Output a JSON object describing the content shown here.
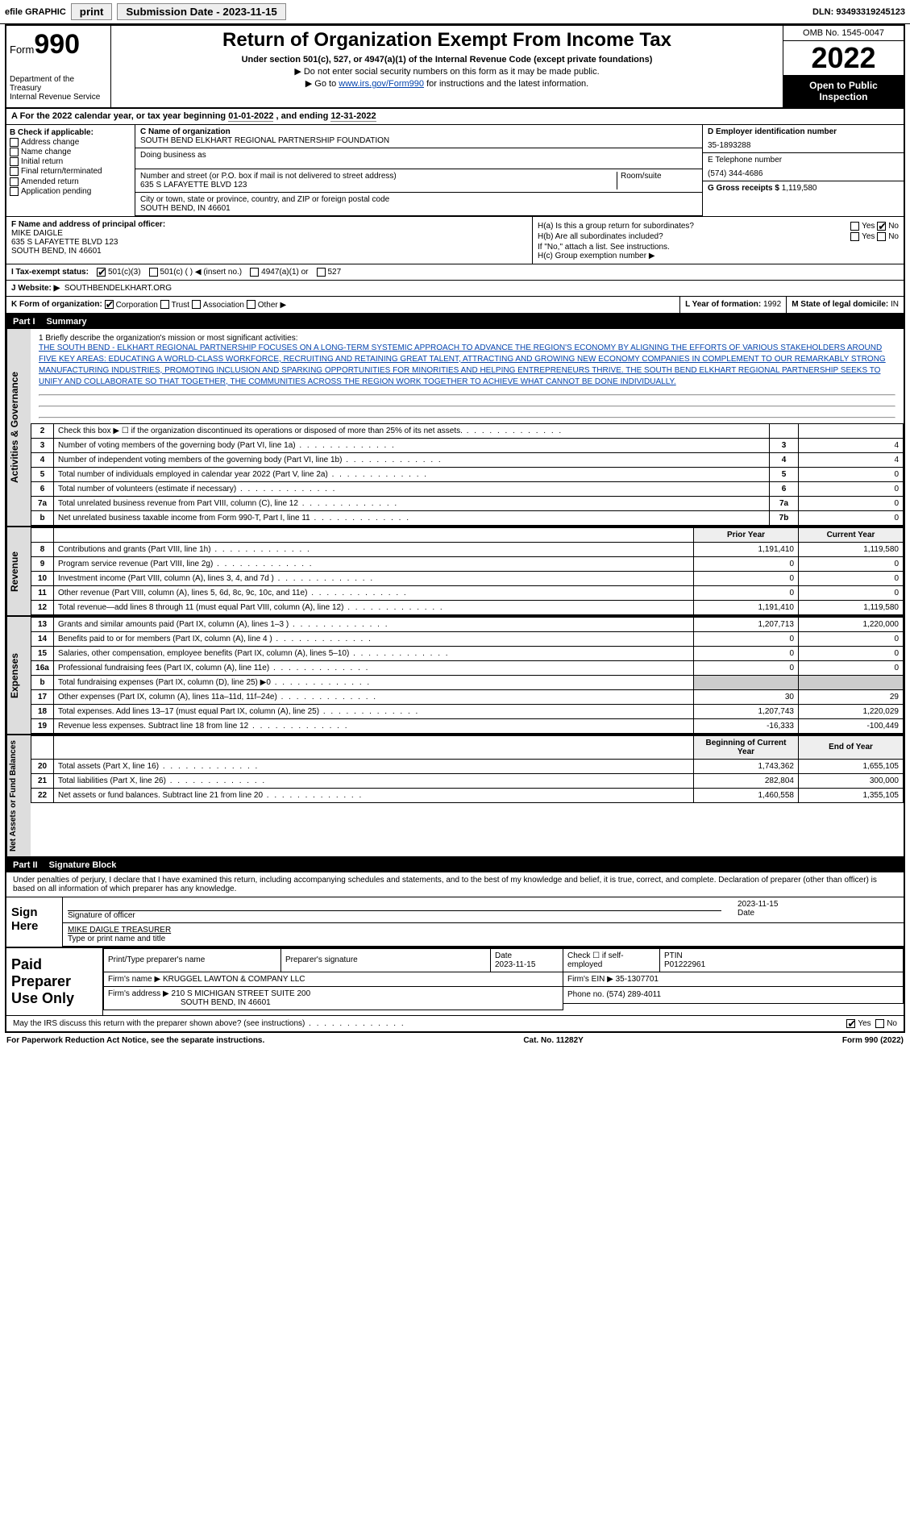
{
  "topbar": {
    "efile": "efile GRAPHIC",
    "print": "print",
    "sub_lbl": "Submission Date - ",
    "sub_date": "2023-11-15",
    "dln_lbl": "DLN: ",
    "dln": "93493319245123"
  },
  "header": {
    "form_prefix": "Form",
    "form_no": "990",
    "title": "Return of Organization Exempt From Income Tax",
    "subtitle": "Under section 501(c), 527, or 4947(a)(1) of the Internal Revenue Code (except private foundations)",
    "note1": "▶ Do not enter social security numbers on this form as it may be made public.",
    "note2_pre": "▶ Go to ",
    "note2_link": "www.irs.gov/Form990",
    "note2_post": " for instructions and the latest information.",
    "dept": "Department of the Treasury\nInternal Revenue Service",
    "omb": "OMB No. 1545-0047",
    "year": "2022",
    "openpub": "Open to Public Inspection"
  },
  "period": {
    "label": "A For the 2022 calendar year, or tax year beginning ",
    "begin": "01-01-2022",
    "mid": " , and ending ",
    "end": "12-31-2022"
  },
  "blockB": {
    "title": "B Check if applicable:",
    "items": [
      "Address change",
      "Name change",
      "Initial return",
      "Final return/terminated",
      "Amended return",
      "Application pending"
    ]
  },
  "blockC": {
    "name_lbl": "C Name of organization",
    "name": "SOUTH BEND ELKHART REGIONAL PARTNERSHIP FOUNDATION",
    "dba_lbl": "Doing business as",
    "dba": "",
    "addr_lbl": "Number and street (or P.O. box if mail is not delivered to street address)",
    "room_lbl": "Room/suite",
    "addr": "635 S LAFAYETTE BLVD 123",
    "city_lbl": "City or town, state or province, country, and ZIP or foreign postal code",
    "city": "SOUTH BEND, IN  46601"
  },
  "blockD": {
    "ein_lbl": "D Employer identification number",
    "ein": "35-1893288",
    "tel_lbl": "E Telephone number",
    "tel": "(574) 344-4686",
    "gross_lbl": "G Gross receipts $ ",
    "gross": "1,119,580"
  },
  "officer": {
    "lbl": "F  Name and address of principal officer:",
    "name": "MIKE DAIGLE",
    "addr1": "635 S LAFAYETTE BLVD 123",
    "addr2": "SOUTH BEND, IN  46601"
  },
  "hblock": {
    "ha": "H(a)  Is this a group return for subordinates?",
    "ha_yes": "Yes",
    "ha_no": "No",
    "hb": "H(b)  Are all subordinates included?",
    "hb_note": "If \"No,\" attach a list. See instructions.",
    "hc": "H(c)  Group exemption number ▶"
  },
  "status": {
    "lbl": "I  Tax-exempt status:",
    "s1": "501(c)(3)",
    "s2": "501(c) (  ) ◀ (insert no.)",
    "s3": "4947(a)(1) or",
    "s4": "527"
  },
  "website": {
    "lbl": "J  Website: ▶",
    "val": "SOUTHBENDELKHART.ORG"
  },
  "korg": {
    "lbl": "K Form of organization:",
    "opts": [
      "Corporation",
      "Trust",
      "Association",
      "Other ▶"
    ],
    "yof_lbl": "L Year of formation: ",
    "yof": "1992",
    "dom_lbl": "M State of legal domicile: ",
    "dom": "IN"
  },
  "part1": {
    "pt": "Part I",
    "title": "Summary"
  },
  "mission": {
    "lbl": "1  Briefly describe the organization's mission or most significant activities:",
    "txt": "THE SOUTH BEND - ELKHART REGIONAL PARTNERSHIP FOCUSES ON A LONG-TERM SYSTEMIC APPROACH TO ADVANCE THE REGION'S ECONOMY BY ALIGNING THE EFFORTS OF VARIOUS STAKEHOLDERS AROUND FIVE KEY AREAS: EDUCATING A WORLD-CLASS WORKFORCE, RECRUITING AND RETAINING GREAT TALENT, ATTRACTING AND GROWING NEW ECONOMY COMPANIES IN COMPLEMENT TO OUR REMARKABLY STRONG MANUFACTURING INDUSTRIES, PROMOTING INCLUSION AND SPARKING OPPORTUNITIES FOR MINORITIES AND HELPING ENTREPRENEURS THRIVE. THE SOUTH BEND ELKHART REGIONAL PARTNERSHIP SEEKS TO UNIFY AND COLLABORATE SO THAT TOGETHER, THE COMMUNITIES ACROSS THE REGION WORK TOGETHER TO ACHIEVE WHAT CANNOT BE DONE INDIVIDUALLY."
  },
  "gov_rows": [
    {
      "n": "2",
      "t": "Check this box ▶ ☐ if the organization discontinued its operations or disposed of more than 25% of its net assets.",
      "box": "",
      "v": ""
    },
    {
      "n": "3",
      "t": "Number of voting members of the governing body (Part VI, line 1a)",
      "box": "3",
      "v": "4"
    },
    {
      "n": "4",
      "t": "Number of independent voting members of the governing body (Part VI, line 1b)",
      "box": "4",
      "v": "4"
    },
    {
      "n": "5",
      "t": "Total number of individuals employed in calendar year 2022 (Part V, line 2a)",
      "box": "5",
      "v": "0"
    },
    {
      "n": "6",
      "t": "Total number of volunteers (estimate if necessary)",
      "box": "6",
      "v": "0"
    },
    {
      "n": "7a",
      "t": "Total unrelated business revenue from Part VIII, column (C), line 12",
      "box": "7a",
      "v": "0"
    },
    {
      "n": "b",
      "t": "Net unrelated business taxable income from Form 990-T, Part I, line 11",
      "box": "7b",
      "v": "0"
    }
  ],
  "rev_hdr": {
    "py": "Prior Year",
    "cy": "Current Year"
  },
  "rev_rows": [
    {
      "n": "8",
      "t": "Contributions and grants (Part VIII, line 1h)",
      "py": "1,191,410",
      "cy": "1,119,580"
    },
    {
      "n": "9",
      "t": "Program service revenue (Part VIII, line 2g)",
      "py": "0",
      "cy": "0"
    },
    {
      "n": "10",
      "t": "Investment income (Part VIII, column (A), lines 3, 4, and 7d )",
      "py": "0",
      "cy": "0"
    },
    {
      "n": "11",
      "t": "Other revenue (Part VIII, column (A), lines 5, 6d, 8c, 9c, 10c, and 11e)",
      "py": "0",
      "cy": "0"
    },
    {
      "n": "12",
      "t": "Total revenue—add lines 8 through 11 (must equal Part VIII, column (A), line 12)",
      "py": "1,191,410",
      "cy": "1,119,580"
    }
  ],
  "exp_rows": [
    {
      "n": "13",
      "t": "Grants and similar amounts paid (Part IX, column (A), lines 1–3 )",
      "py": "1,207,713",
      "cy": "1,220,000"
    },
    {
      "n": "14",
      "t": "Benefits paid to or for members (Part IX, column (A), line 4 )",
      "py": "0",
      "cy": "0"
    },
    {
      "n": "15",
      "t": "Salaries, other compensation, employee benefits (Part IX, column (A), lines 5–10)",
      "py": "0",
      "cy": "0"
    },
    {
      "n": "16a",
      "t": "Professional fundraising fees (Part IX, column (A), line 11e)",
      "py": "0",
      "cy": "0"
    },
    {
      "n": "b",
      "t": "Total fundraising expenses (Part IX, column (D), line 25) ▶0",
      "py": "",
      "cy": "",
      "shade": true
    },
    {
      "n": "17",
      "t": "Other expenses (Part IX, column (A), lines 11a–11d, 11f–24e)",
      "py": "30",
      "cy": "29"
    },
    {
      "n": "18",
      "t": "Total expenses. Add lines 13–17 (must equal Part IX, column (A), line 25)",
      "py": "1,207,743",
      "cy": "1,220,029"
    },
    {
      "n": "19",
      "t": "Revenue less expenses. Subtract line 18 from line 12",
      "py": "-16,333",
      "cy": "-100,449"
    }
  ],
  "net_hdr": {
    "boy": "Beginning of Current Year",
    "eoy": "End of Year"
  },
  "net_rows": [
    {
      "n": "20",
      "t": "Total assets (Part X, line 16)",
      "py": "1,743,362",
      "cy": "1,655,105"
    },
    {
      "n": "21",
      "t": "Total liabilities (Part X, line 26)",
      "py": "282,804",
      "cy": "300,000"
    },
    {
      "n": "22",
      "t": "Net assets or fund balances. Subtract line 21 from line 20",
      "py": "1,460,558",
      "cy": "1,355,105"
    }
  ],
  "vtabs": {
    "gov": "Activities & Governance",
    "rev": "Revenue",
    "exp": "Expenses",
    "net": "Net Assets or Fund Balances"
  },
  "part2": {
    "pt": "Part II",
    "title": "Signature Block"
  },
  "sig": {
    "decl": "Under penalties of perjury, I declare that I have examined this return, including accompanying schedules and statements, and to the best of my knowledge and belief, it is true, correct, and complete. Declaration of preparer (other than officer) is based on all information of which preparer has any knowledge.",
    "sign_here": "Sign Here",
    "sig_lbl": "Signature of officer",
    "date_lbl": "Date",
    "date": "2023-11-15",
    "name_lbl": "Type or print name and title",
    "name": "MIKE DAIGLE  TREASURER"
  },
  "prep": {
    "title": "Paid Preparer Use Only",
    "c1": "Print/Type preparer's name",
    "c2": "Preparer's signature",
    "c3_lbl": "Date",
    "c3": "2023-11-15",
    "c4_lbl": "Check ☐ if self-employed",
    "c5_lbl": "PTIN",
    "c5": "P01222961",
    "firm_lbl": "Firm's name    ▶ ",
    "firm": "KRUGGEL LAWTON & COMPANY LLC",
    "firm_ein_lbl": "Firm's EIN ▶ ",
    "firm_ein": "35-1307701",
    "firm_addr_lbl": "Firm's address ▶ ",
    "firm_addr": "210 S MICHIGAN STREET SUITE 200",
    "firm_city": "SOUTH BEND, IN  46601",
    "phone_lbl": "Phone no. ",
    "phone": "(574) 289-4011",
    "discuss": "May the IRS discuss this return with the preparer shown above? (see instructions)",
    "yes": "Yes",
    "no": "No"
  },
  "footer": {
    "left": "For Paperwork Reduction Act Notice, see the separate instructions.",
    "mid": "Cat. No. 11282Y",
    "right": "Form 990 (2022)"
  }
}
